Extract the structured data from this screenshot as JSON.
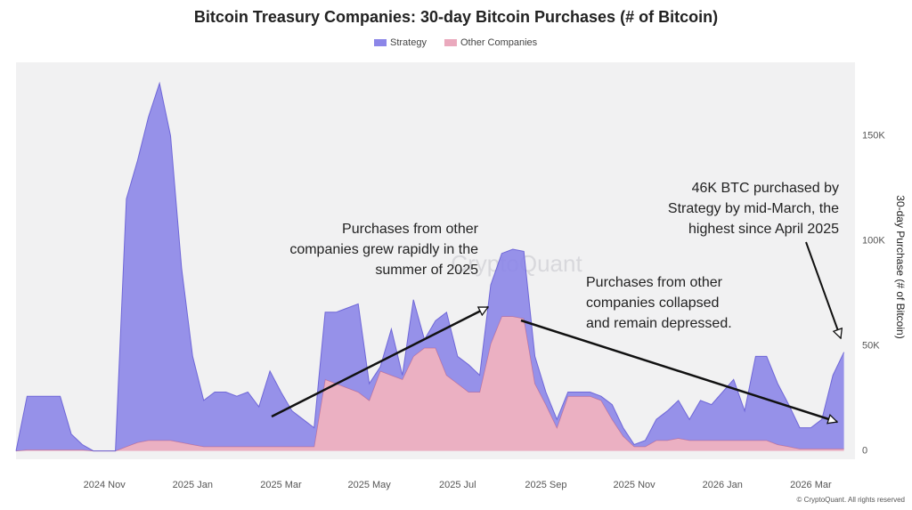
{
  "chart_data": {
    "type": "stacked-area",
    "title": "Bitcoin Treasury Companies: 30-day Bitcoin Purchases (# of Bitcoin)",
    "y_axis_label": "30-day Purchase (# of Bitcoin)",
    "watermark": "CryptoQuant",
    "footer": "© CryptoQuant. All rights reserved",
    "categories": [
      null,
      null,
      null,
      null,
      null,
      null,
      null,
      null,
      "2024 Nov",
      null,
      null,
      null,
      null,
      null,
      null,
      null,
      "2025 Jan",
      null,
      null,
      null,
      null,
      null,
      null,
      null,
      "2025 Mar",
      null,
      null,
      null,
      null,
      null,
      null,
      null,
      "2025 May",
      null,
      null,
      null,
      null,
      null,
      null,
      null,
      "2025 Jul",
      null,
      null,
      null,
      null,
      null,
      null,
      null,
      "2025 Sep",
      null,
      null,
      null,
      null,
      null,
      null,
      null,
      "2025 Nov",
      null,
      null,
      null,
      null,
      null,
      null,
      null,
      "2026 Jan",
      null,
      null,
      null,
      null,
      null,
      null,
      null,
      "2026 Mar",
      null,
      null,
      null
    ],
    "series": [
      {
        "name": "Strategy",
        "color": "#8c86e8",
        "values": [
          0,
          25500,
          25500,
          25500,
          25500,
          7500,
          2500,
          0,
          0,
          0,
          118000,
          134000,
          154000,
          170000,
          145000,
          83000,
          42000,
          22000,
          26000,
          26000,
          24000,
          26000,
          19000,
          36000,
          26000,
          17000,
          13000,
          9000,
          32000,
          34000,
          38000,
          42000,
          8000,
          2000,
          22000,
          2000,
          27000,
          4000,
          13000,
          30000,
          13000,
          13000,
          8000,
          28000,
          30000,
          32000,
          32000,
          13000,
          6000,
          4000,
          2000,
          2000,
          2000,
          2000,
          7000,
          4000,
          1000,
          3000,
          10000,
          14000,
          18000,
          10000,
          19000,
          17000,
          23000,
          29000,
          14000,
          40000,
          40000,
          29000,
          20000,
          10000,
          10000,
          14000,
          35000,
          46000
        ]
      },
      {
        "name": "Other Companies",
        "color": "#eaa9bd",
        "values": [
          0,
          500,
          500,
          500,
          500,
          500,
          500,
          0,
          0,
          0,
          2000,
          4000,
          5000,
          5000,
          5000,
          4000,
          3000,
          2000,
          2000,
          2000,
          2000,
          2000,
          2000,
          2000,
          2000,
          2000,
          2000,
          2000,
          34000,
          32000,
          30000,
          28000,
          24000,
          38000,
          36000,
          34000,
          45000,
          49000,
          49000,
          36000,
          32000,
          28000,
          28000,
          51000,
          64000,
          64000,
          63000,
          32000,
          22000,
          11000,
          26000,
          26000,
          26000,
          24000,
          15000,
          7000,
          2000,
          2000,
          5000,
          5000,
          6000,
          5000,
          5000,
          5000,
          5000,
          5000,
          5000,
          5000,
          5000,
          3000,
          2000,
          1000,
          1000,
          1000,
          1000,
          1000
        ]
      }
    ],
    "ylim": [
      -4000,
      185000
    ],
    "yticks": [
      0,
      {
        "value": 50000,
        "label": "50K"
      },
      {
        "value": 100000,
        "label": "100K"
      },
      {
        "value": 150000,
        "label": "150K"
      }
    ],
    "legend": "top",
    "annotations": [
      {
        "lines": [
          "Purchases from other",
          "companies grew rapidly in the",
          "summer of 2025"
        ]
      },
      {
        "lines": [
          "Purchases from other",
          "companies collapsed",
          "and remain depressed."
        ]
      },
      {
        "lines": [
          "46K BTC purchased by",
          "Strategy by mid-March, the",
          "highest since April 2025"
        ]
      }
    ]
  }
}
